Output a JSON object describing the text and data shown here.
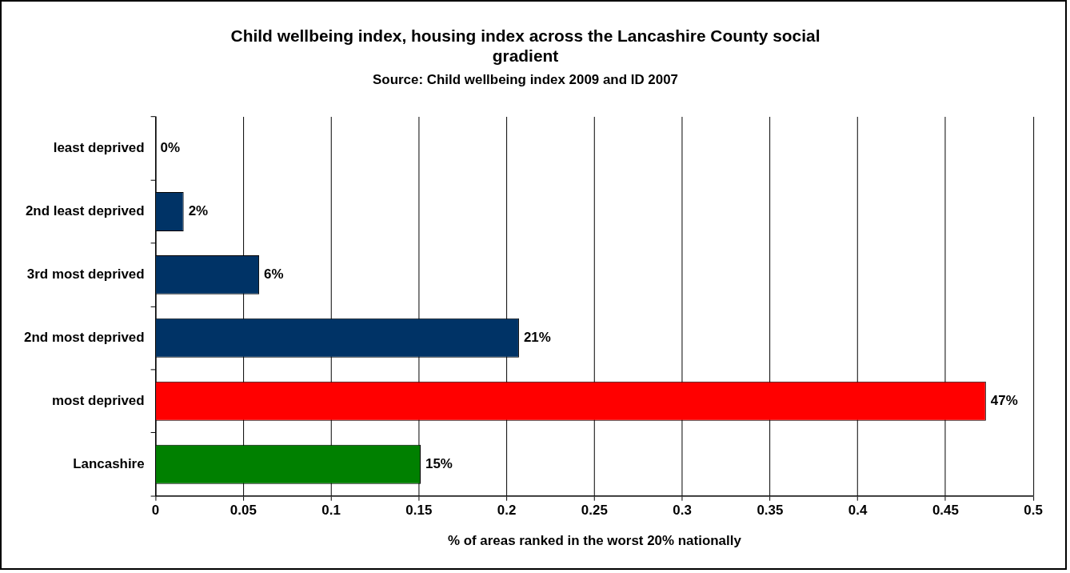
{
  "chart_data": {
    "type": "bar",
    "orientation": "horizontal",
    "title": [
      "Child wellbeing index, housing index across the Lancashire County social",
      "gradient"
    ],
    "subtitle": "Source: Child wellbeing index 2009 and ID 2007",
    "xlabel": "% of areas ranked in the worst 20% nationally",
    "categories": [
      "least deprived",
      "2nd least deprived",
      "3rd most deprived",
      "2nd most deprived",
      "most deprived",
      "Lancashire"
    ],
    "values": [
      0,
      0.016,
      0.059,
      0.207,
      0.473,
      0.151
    ],
    "colors": [
      "#003366",
      "#003366",
      "#003366",
      "#003366",
      "#ff0000",
      "#008000"
    ],
    "value_labels": [
      "0%",
      "2%",
      "6%",
      "21%",
      "47%",
      "15%"
    ],
    "xlim": [
      0,
      0.5
    ],
    "xticks": [
      0,
      0.05,
      0.1,
      0.15,
      0.2,
      0.25,
      0.3,
      0.35,
      0.4,
      0.45,
      0.5
    ],
    "grid": "x",
    "legend": false
  }
}
